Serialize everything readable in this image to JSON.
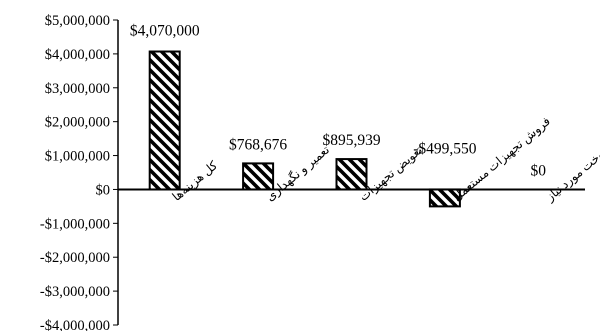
{
  "chart_data": {
    "type": "bar",
    "categories": [
      "کل هزینه‌ها",
      "تعمیر و نگهداری",
      "تعویض تجهیزات",
      "فروش تجهیزات مستعمل",
      "سوخت مورد نیاز"
    ],
    "values": [
      4070000,
      768676,
      895939,
      -499550,
      0
    ],
    "data_labels": [
      "$4,070,000",
      "$768,676",
      "$895,939",
      "-$499,550",
      "$0"
    ],
    "y_ticks": [
      {
        "value": 5000000,
        "label": "$5,000,000"
      },
      {
        "value": 4000000,
        "label": "$4,000,000"
      },
      {
        "value": 3000000,
        "label": "$3,000,000"
      },
      {
        "value": 2000000,
        "label": "$2,000,000"
      },
      {
        "value": 1000000,
        "label": "$1,000,000"
      },
      {
        "value": 0,
        "label": "$0"
      },
      {
        "value": -1000000,
        "label": "-$1,000,000"
      },
      {
        "value": -2000000,
        "label": "-$2,000,000"
      },
      {
        "value": -3000000,
        "label": "-$3,000,000"
      },
      {
        "value": -4000000,
        "label": "-$4,000,000"
      }
    ],
    "ylim": [
      -4000000,
      5000000
    ],
    "grid": false,
    "legend": "none",
    "bar_pattern": "diagonal-hatch",
    "bar_fill_color": "#ffffff",
    "bar_stroke_color": "#000000"
  }
}
